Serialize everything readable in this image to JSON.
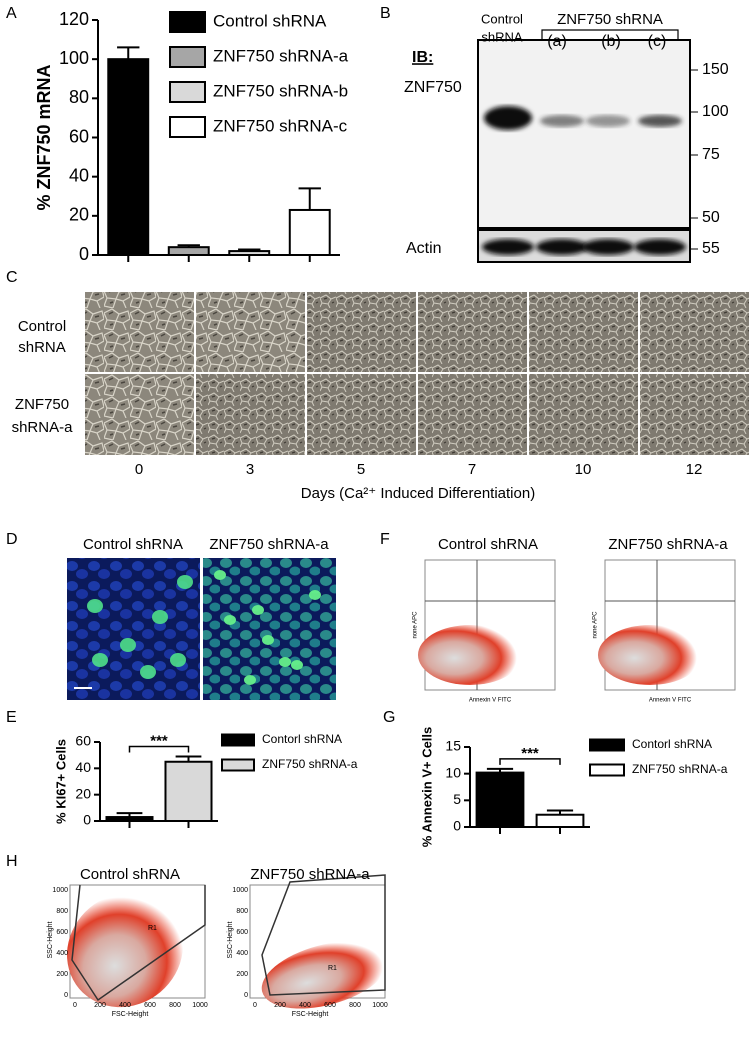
{
  "panel_labels": [
    "A",
    "B",
    "C",
    "D",
    "E",
    "F",
    "G",
    "H"
  ],
  "chart_data": [
    {
      "type": "bar",
      "ylabel": "% ZNF750 mRNA",
      "ylim": [
        0,
        120
      ],
      "yticks": [
        0,
        20,
        40,
        60,
        80,
        100,
        120
      ],
      "legend": [
        "Control shRNA",
        "ZNF750 shRNA-a",
        "ZNF750 shRNA-b",
        "ZNF750 shRNA-c"
      ],
      "values": [
        100,
        4,
        2,
        23
      ],
      "errors": [
        6,
        1,
        0.8,
        11
      ],
      "colors": [
        "#000000",
        "#a6a6a6",
        "#d9d9d9",
        "#ffffff"
      ]
    },
    {
      "type": "bar",
      "ylabel": "% KI67+ Cells",
      "ylim": [
        0,
        60
      ],
      "yticks": [
        0,
        20,
        40,
        60
      ],
      "legend": [
        "Contorl shRNA",
        "ZNF750 shRNA-a"
      ],
      "values": [
        3,
        45
      ],
      "errors": [
        3,
        4
      ],
      "colors": [
        "#000000",
        "#d9d9d9"
      ],
      "annotation": "***"
    },
    {
      "type": "bar",
      "ylabel": "% Annexin V+ Cells",
      "ylim": [
        0,
        15
      ],
      "yticks": [
        0,
        5,
        10,
        15
      ],
      "legend": [
        "Contorl shRNA",
        "ZNF750 shRNA-a"
      ],
      "values": [
        10.2,
        2.3
      ],
      "errors": [
        0.7,
        0.8
      ],
      "colors": [
        "#000000",
        "#ffffff"
      ],
      "annotation": "***"
    }
  ],
  "blot": {
    "control_lane": [
      "Control",
      "shRNA"
    ],
    "group": "ZNF750  shRNA",
    "lanes": [
      "(a)",
      "(b)",
      "(c)"
    ],
    "ib": "IB:",
    "target": "ZNF750",
    "loading": "Actin",
    "markers": [
      "150",
      "100",
      "75",
      "50"
    ],
    "loading_marker": "55"
  },
  "timecourse": {
    "rows": [
      [
        "Control",
        "shRNA"
      ],
      [
        "ZNF750",
        "shRNA-a"
      ]
    ],
    "days": [
      "0",
      "3",
      "5",
      "7",
      "10",
      "12"
    ],
    "axis_label": "Days  (Ca²⁺ Induced Differentiation)"
  },
  "ki67_images": {
    "titles": [
      "Control shRNA",
      "ZNF750 shRNA-a"
    ]
  },
  "annexin_flow": {
    "titles": [
      "Control shRNA",
      "ZNF750 shRNA-a"
    ],
    "x_label": "Annexin V FITC",
    "y_label": "none APC"
  },
  "scatter_flow": {
    "titles": [
      "Control shRNA",
      "ZNF750 shRNA-a"
    ],
    "x_label": "FSC-Height",
    "y_label": "SSC-Height",
    "ticks": [
      "0",
      "200",
      "400",
      "600",
      "800",
      "1000"
    ],
    "gate": "R1"
  }
}
